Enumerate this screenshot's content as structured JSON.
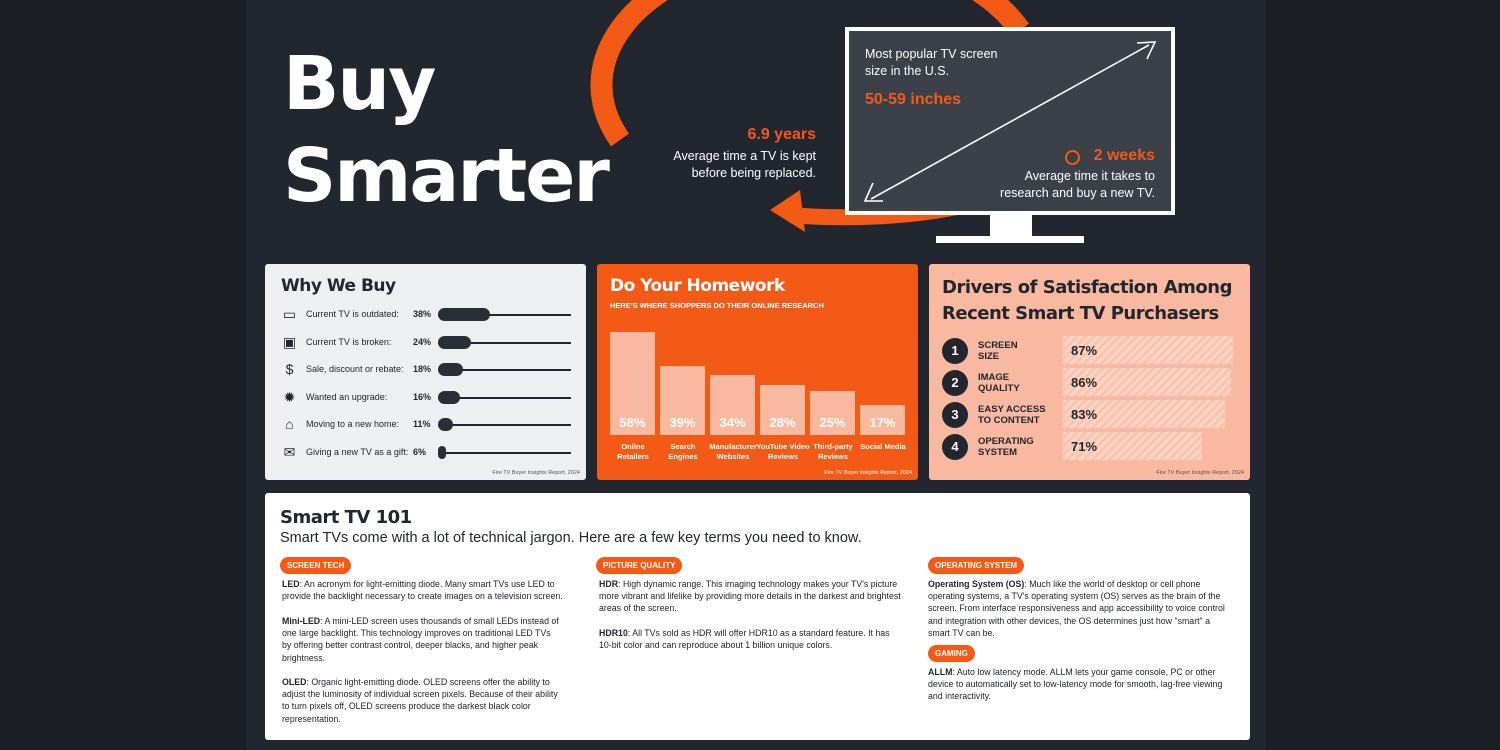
{
  "hero": {
    "line1": "Buy",
    "line2": "Smarter"
  },
  "stat_years": {
    "value": "6.9 years",
    "desc1": "Average time a TV is kept",
    "desc2": "before being replaced."
  },
  "tv": {
    "label1": "Most popular TV screen",
    "label2": "size in the U.S.",
    "size": "50-59 inches",
    "weeks": "2 weeks",
    "weeks_desc1": "Average time it takes to",
    "weeks_desc2": "research and buy a new TV."
  },
  "why": {
    "title": "Why We Buy",
    "source": "Fire TV Buyer Insights Report, 2024",
    "items": [
      {
        "icon": "tv-icon",
        "label": "Current TV is outdated:",
        "pct": "38%",
        "value": 38
      },
      {
        "icon": "broken-tv-icon",
        "label": "Current TV is broken:",
        "pct": "24%",
        "value": 24
      },
      {
        "icon": "discount-icon",
        "label": "Sale, discount or rebate:",
        "pct": "18%",
        "value": 18
      },
      {
        "icon": "upgrade-badge-icon",
        "label": "Wanted an upgrade:",
        "pct": "16%",
        "value": 16
      },
      {
        "icon": "house-icon",
        "label": "Moving to a new home:",
        "pct": "11%",
        "value": 11
      },
      {
        "icon": "gift-icon",
        "label": "Giving a new TV as a gift:",
        "pct": "6%",
        "value": 6
      }
    ]
  },
  "homework": {
    "title": "Do Your Homework",
    "subtitle": "HERE'S WHERE SHOPPERS DO THEIR ONLINE RESEARCH",
    "source": "Fire TV Buyer Insights Report, 2024"
  },
  "drivers": {
    "title1": "Drivers of Satisfaction Among",
    "title2": "Recent Smart TV Purchasers",
    "source": "Fire TV Buyer Insights Report, 2024",
    "items": [
      {
        "num": "1",
        "l1": "SCREEN",
        "l2": "SIZE",
        "pct": "87%",
        "value": 87
      },
      {
        "num": "2",
        "l1": "IMAGE",
        "l2": "QUALITY",
        "pct": "86%",
        "value": 86
      },
      {
        "num": "3",
        "l1": "EASY ACCESS",
        "l2": "TO CONTENT",
        "pct": "83%",
        "value": 83
      },
      {
        "num": "4",
        "l1": "OPERATING",
        "l2": "SYSTEM",
        "pct": "71%",
        "value": 71
      }
    ]
  },
  "chart_data": {
    "type": "bar",
    "categories": [
      "Online Retailers",
      "Search Engines",
      "Manufacturer Websites",
      "YouTube Video Reviews",
      "Third-party Reviews",
      "Social Media"
    ],
    "values": [
      58,
      39,
      34,
      28,
      25,
      17
    ],
    "labels": [
      "58%",
      "39%",
      "34%",
      "28%",
      "25%",
      "17%"
    ],
    "title": "Do Your Homework",
    "subtitle": "HERE'S WHERE SHOPPERS DO THEIR ONLINE RESEARCH"
  },
  "smart101": {
    "title": "Smart TV 101",
    "subtitle": "Smart TVs come with a lot of technical jargon. Here are a few key terms you need to know.",
    "tag_screen": "SCREEN TECH",
    "tag_picture": "PICTURE QUALITY",
    "tag_os": "OPERATING SYSTEM",
    "tag_gaming": "GAMING",
    "led_term": "LED",
    "led_text": ": An acronym for light-emitting diode. Many smart TVs use LED to provide the backlight necessary to create images on a television screen.",
    "miniled_term": "Mini-LED",
    "miniled_text": ": A mini-LED screen uses thousands of small LEDs instead of one large backlight. This technology improves on traditional LED TVs by offering better contrast control, deeper blacks, and higher peak brightness.",
    "oled_term": "OLED",
    "oled_text": ": Organic light-emitting diode. OLED screens offer the ability to adjust the luminosity of individual screen pixels. Because of their ability to turn pixels off, OLED screens produce the darkest black color representation.",
    "hdr_term": "HDR",
    "hdr_text": ": High dynamic range. This imaging technology makes your TV's picture more vibrant and lifelike by providing more details in the darkest and brightest areas of the screen.",
    "hdr10_term": "HDR10",
    "hdr10_text": ": All TVs sold as HDR will offer HDR10 as a standard feature. It has 10-bit color and can reproduce about 1 billion unique colors.",
    "os_term": "Operating System (OS)",
    "os_text": ": Much like the world of desktop or cell phone operating systems, a TV's operating system (OS) serves as the brain of the screen. From interface responsiveness and app accessibility to voice control and integration with other devices, the OS determines just how \"smart\" a smart TV can be.",
    "allm_term": "ALLM",
    "allm_text": ": Auto low latency mode. ALLM lets your game console, PC or other device to automatically set to low-latency mode for smooth, lag-free viewing and interactivity."
  },
  "colors": {
    "accent": "#f25a16",
    "dark": "#22262e",
    "peach": "#f9b9a0"
  }
}
